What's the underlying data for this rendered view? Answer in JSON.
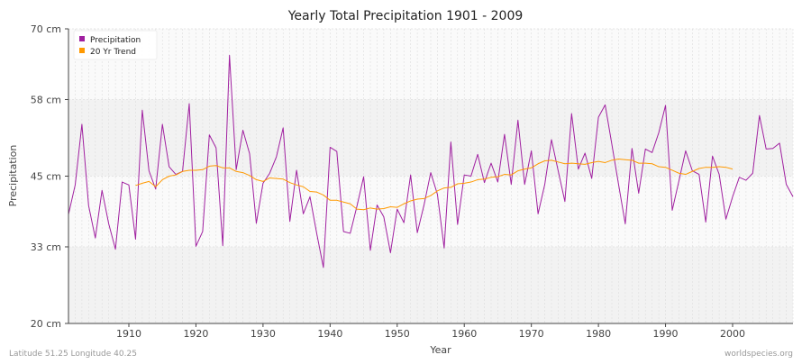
{
  "chart_data": {
    "type": "line",
    "title": "Yearly Total Precipitation 1901 - 2009",
    "xlabel": "Year",
    "ylabel": "Precipitation",
    "xlim": [
      1901,
      2009
    ],
    "ylim": [
      20,
      70
    ],
    "x_ticks": [
      1910,
      1920,
      1930,
      1940,
      1950,
      1960,
      1970,
      1980,
      1990,
      2000
    ],
    "y_ticks": [
      20,
      33,
      45,
      58,
      70
    ],
    "y_tick_labels": [
      "20 cm",
      "33 cm",
      "45 cm",
      "58 cm",
      "70 cm"
    ],
    "grid": true,
    "legend_position": "top-left",
    "series": [
      {
        "name": "Precipitation",
        "color": "#a020a0",
        "x_start": 1901,
        "values": [
          38.5,
          43.5,
          53.8,
          40.0,
          34.5,
          42.6,
          36.9,
          32.6,
          44.0,
          43.5,
          34.3,
          56.2,
          45.9,
          42.8,
          53.8,
          46.6,
          45.3,
          45.8,
          57.3,
          33.1,
          35.6,
          52.0,
          49.8,
          33.2,
          65.5,
          46.1,
          52.8,
          48.8,
          37.0,
          43.8,
          45.5,
          48.3,
          53.2,
          37.3,
          46.0,
          38.6,
          41.5,
          35.3,
          29.5,
          49.9,
          49.2,
          35.6,
          35.3,
          39.9,
          44.9,
          32.4,
          40.1,
          38.1,
          32.0,
          39.4,
          37.1,
          45.2,
          35.4,
          40.1,
          45.6,
          41.9,
          32.8,
          50.8,
          36.8,
          45.2,
          45.0,
          48.7,
          43.9,
          47.2,
          44.0,
          52.1,
          43.6,
          54.5,
          43.6,
          49.3,
          38.6,
          43.6,
          51.2,
          45.9,
          40.7,
          55.6,
          46.2,
          48.9,
          44.6,
          55.0,
          57.1,
          50.4,
          43.6,
          36.9,
          49.7,
          42.1,
          49.6,
          49.0,
          52.4,
          57.0,
          39.2,
          44.2,
          49.3,
          45.9,
          45.3,
          37.2,
          48.4,
          45.3,
          37.7,
          41.5,
          44.8,
          44.3,
          45.5,
          55.3,
          49.6,
          49.7,
          50.6,
          43.6,
          41.5
        ]
      },
      {
        "name": "20 Yr Trend",
        "color": "#ff9900",
        "x_start": 1911,
        "values": [
          43.4,
          43.8,
          44.1,
          43.2,
          44.4,
          45.0,
          45.2,
          45.8,
          46.0,
          46.0,
          46.1,
          46.7,
          46.8,
          46.4,
          46.4,
          45.8,
          45.6,
          45.1,
          44.4,
          44.1,
          44.7,
          44.6,
          44.5,
          43.9,
          43.5,
          43.2,
          42.4,
          42.3,
          41.8,
          40.9,
          40.9,
          40.6,
          40.3,
          39.4,
          39.3,
          39.6,
          39.4,
          39.5,
          39.8,
          39.7,
          40.3,
          40.8,
          41.1,
          41.2,
          41.7,
          42.5,
          43.0,
          43.1,
          43.7,
          43.8,
          44.0,
          44.4,
          44.5,
          44.8,
          44.9,
          45.3,
          45.2,
          45.9,
          46.2,
          46.4,
          47.1,
          47.6,
          47.7,
          47.4,
          47.1,
          47.2,
          47.1,
          47.0,
          47.3,
          47.5,
          47.3,
          47.7,
          47.9,
          47.8,
          47.7,
          47.2,
          47.2,
          47.1,
          46.6,
          46.5,
          46.0,
          45.5,
          45.3,
          45.8,
          46.3,
          46.5,
          46.5,
          46.6,
          46.5,
          46.2
        ]
      }
    ]
  },
  "footer": {
    "location": "Latitude 51.25 Longitude 40.25",
    "credit": "worldspecies.org"
  },
  "colors": {
    "band_shaded": "#f2f2f2",
    "band_light": "#fafafa",
    "gridline": "#dddddd",
    "axis": "#444444"
  }
}
